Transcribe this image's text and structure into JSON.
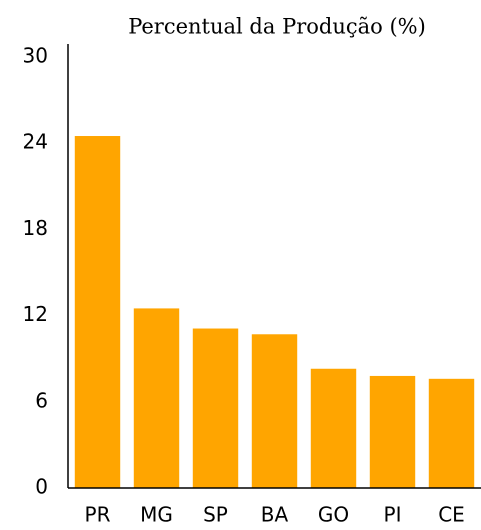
{
  "chart_data": {
    "type": "bar",
    "title": "Percentual da Produção (%)",
    "categories": [
      "PR",
      "MG",
      "SP",
      "BA",
      "GO",
      "PI",
      "CE"
    ],
    "values": [
      24.5,
      12.5,
      11.1,
      10.7,
      8.3,
      7.8,
      7.6
    ],
    "color": "#ffa500",
    "ylim": [
      0,
      30
    ],
    "yticks": [
      0,
      6,
      12,
      18,
      24,
      30
    ],
    "grid": false
  }
}
